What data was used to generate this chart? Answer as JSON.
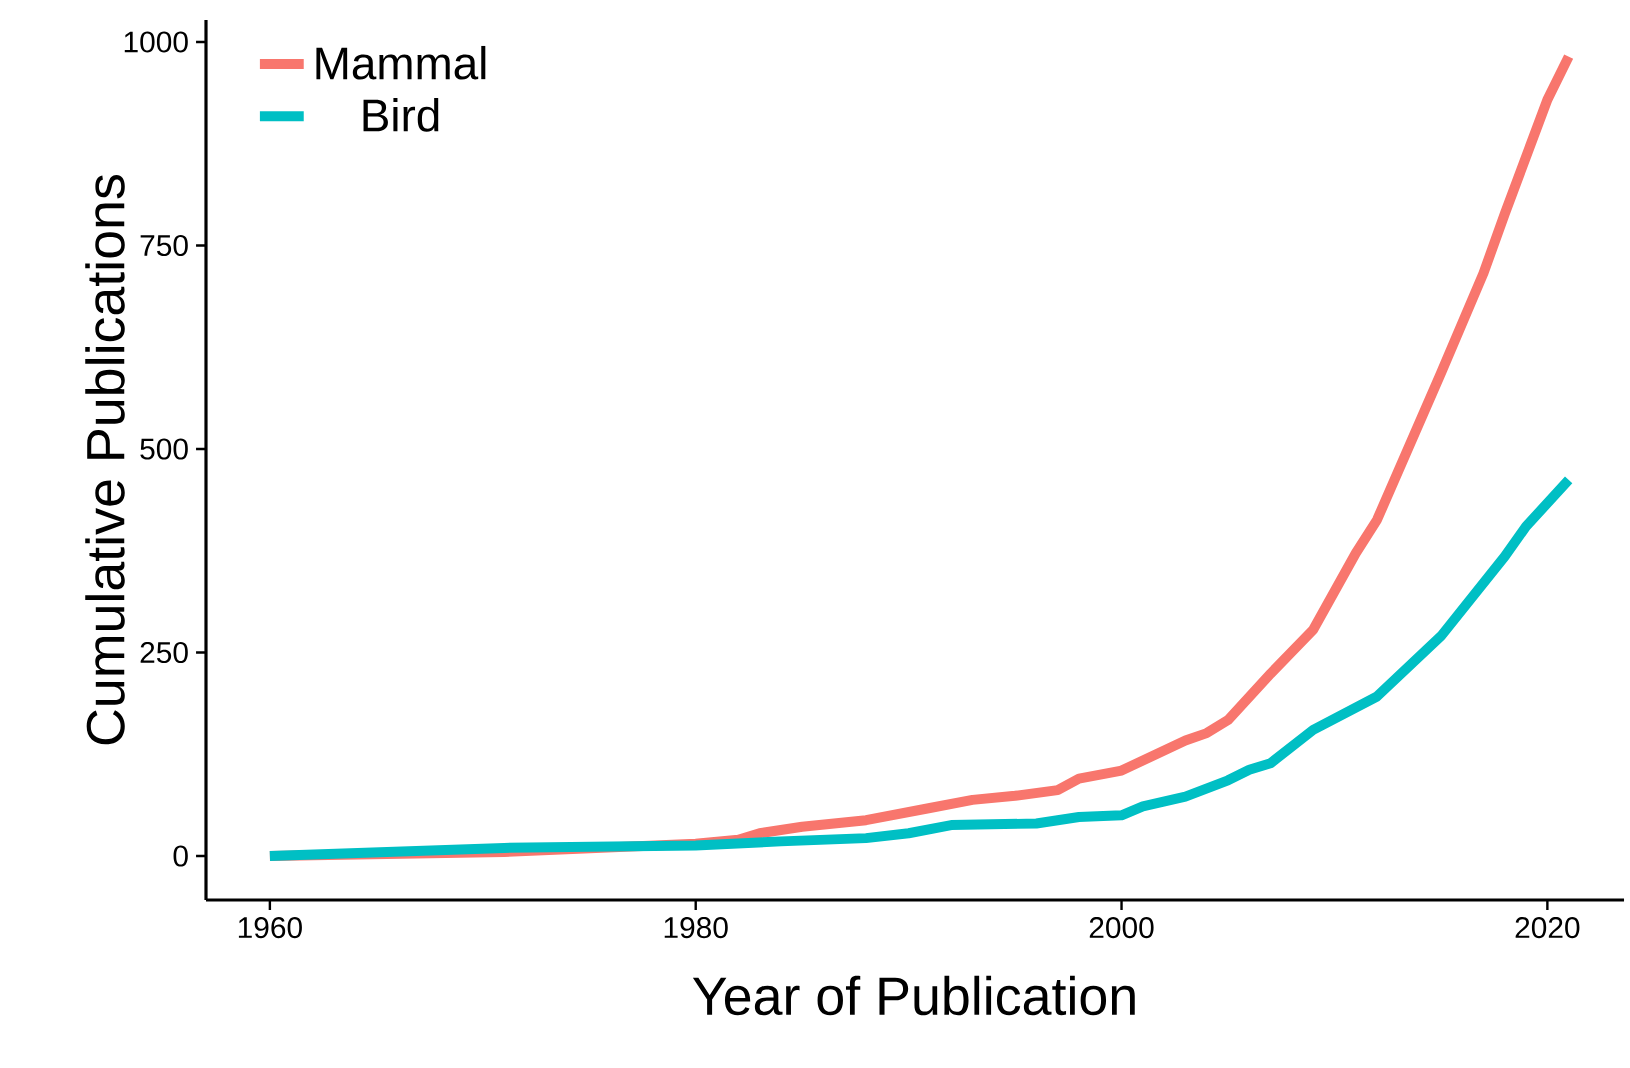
{
  "chart_data": {
    "type": "line",
    "xlabel": "Year of Publication",
    "ylabel": "Cumulative Publications",
    "xlim": [
      1957,
      2023.6
    ],
    "ylim": [
      -54,
      1027
    ],
    "xticks": [
      1960,
      1980,
      2000,
      2020
    ],
    "yticks": [
      0,
      250,
      500,
      750,
      1000
    ],
    "grid": false,
    "legend": "top left",
    "marker": "none",
    "line_style": "solid",
    "series": [
      {
        "name": "Mammal",
        "color": "#f8766d",
        "x": [
          1960,
          1971,
          1980,
          1982,
          1983,
          1985,
          1988,
          1991,
          1993,
          1995,
          1997,
          1998,
          2000,
          2003,
          2004,
          2005,
          2007,
          2009,
          2011,
          2012,
          2015,
          2017,
          2018,
          2020,
          2021
        ],
        "values": [
          0,
          5,
          15,
          20,
          28,
          36,
          44,
          59,
          69,
          74,
          81,
          95,
          105,
          142,
          151,
          167,
          224,
          278,
          372,
          413,
          593,
          716,
          789,
          929,
          982
        ]
      },
      {
        "name": "Bird",
        "color": "#00bfc4",
        "x": [
          1960,
          1971,
          1980,
          1984,
          1988,
          1990,
          1992,
          1996,
          1998,
          2000,
          2001,
          2003,
          2005,
          2006,
          2007,
          2009,
          2012,
          2015,
          2018,
          2019,
          2021
        ],
        "values": [
          0,
          10,
          13,
          18,
          22,
          28,
          38,
          40,
          48,
          50,
          61,
          73,
          93,
          106,
          114,
          155,
          196,
          270,
          368,
          405,
          462
        ]
      }
    ]
  }
}
